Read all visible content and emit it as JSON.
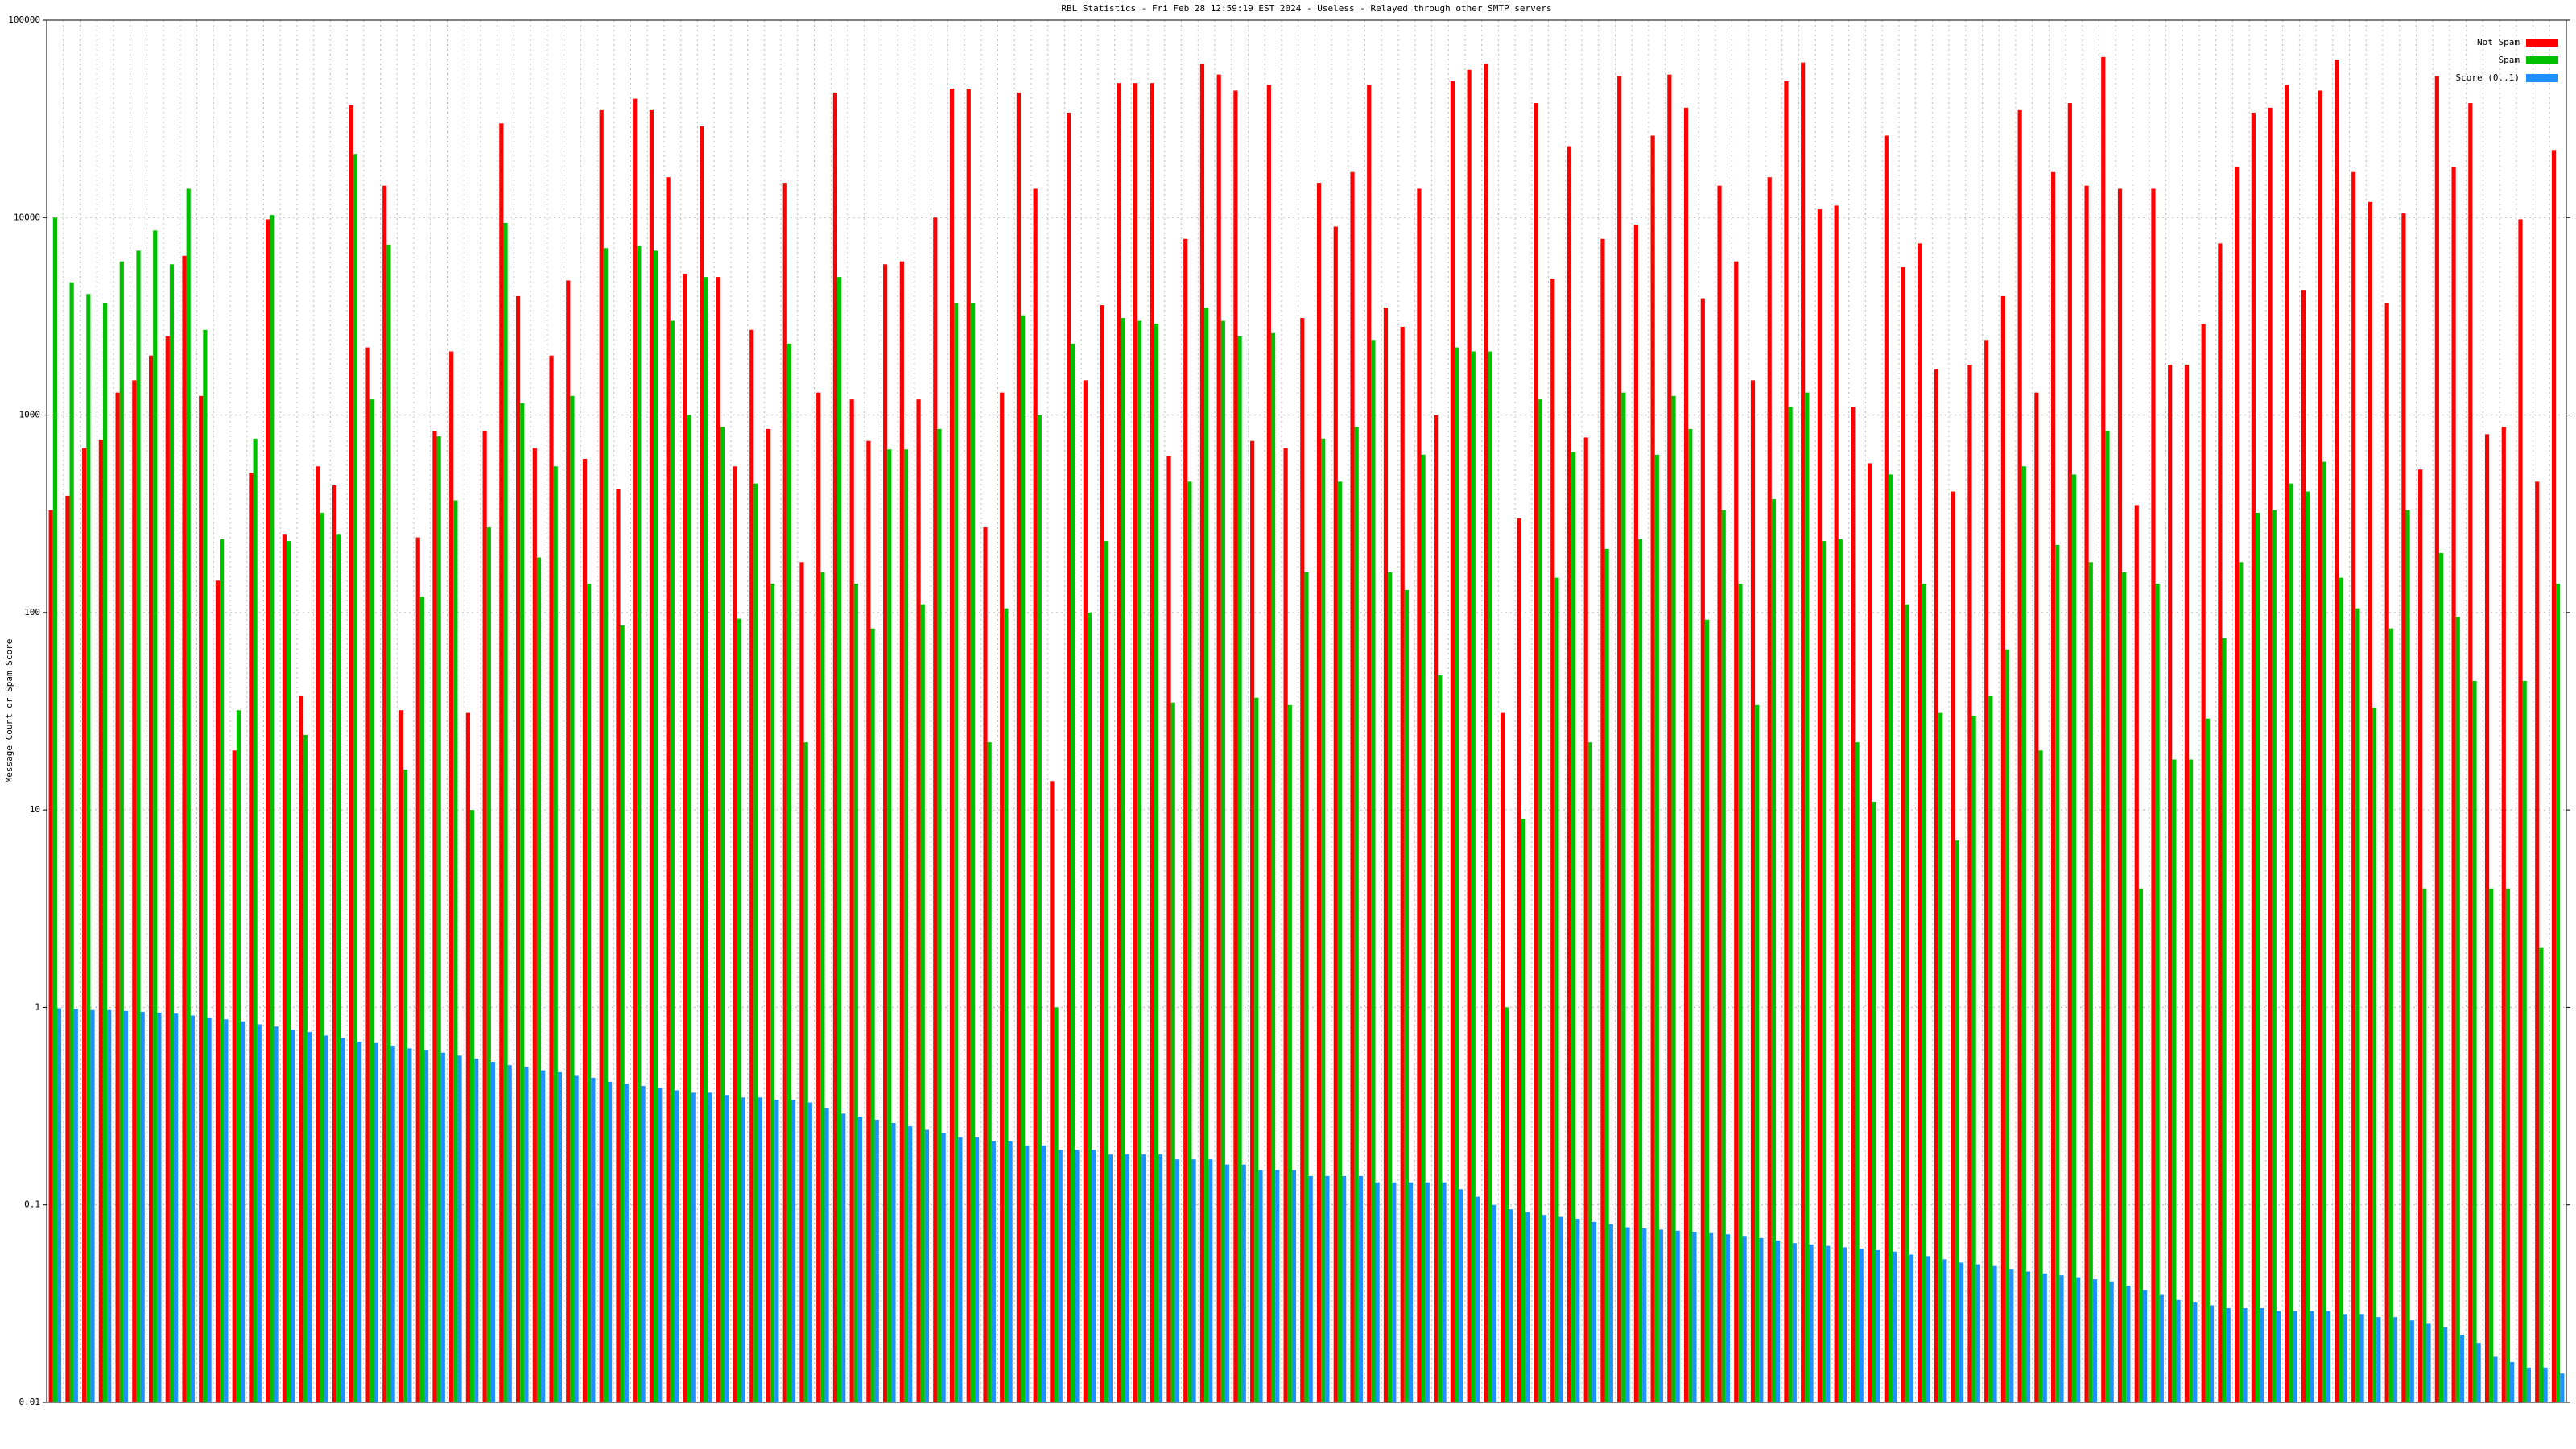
{
  "chart_data": {
    "type": "bar",
    "title": "RBL Statistics - Fri Feb 28 12:59:19 EST 2024 - Useless - Relayed through other SMTP servers",
    "ylabel": "Message Count or Spam Score",
    "log_scale": true,
    "grid": true,
    "legend": "top-right",
    "ylim": [
      0.01,
      100000
    ],
    "yticks": [
      0.01,
      0.1,
      1,
      10,
      100,
      1000,
      10000,
      100000
    ],
    "series": [
      {
        "name": "Not Spam",
        "color": "#ff0000",
        "values": [
          330,
          390,
          680,
          750,
          1300,
          1500,
          2000,
          2500,
          6400,
          1250,
          145,
          20,
          510,
          9800,
          250,
          38,
          550,
          440,
          37000,
          2200,
          14500,
          32,
          240,
          830,
          2100,
          31,
          830,
          30000,
          4000,
          680,
          2000,
          4800,
          600,
          35000,
          420,
          40000,
          35000,
          16000,
          5200,
          29000,
          5000,
          550,
          2700,
          850,
          15000,
          180,
          1300,
          43000,
          1200,
          740,
          5800,
          6000,
          1200,
          10000,
          45000,
          45000,
          270,
          1300,
          43000,
          14000,
          14,
          34000,
          1500,
          3600,
          48000,
          48000,
          48000,
          620,
          7800,
          60000,
          53000,
          44000,
          740,
          47000,
          680,
          3100,
          15000,
          9000,
          17000,
          47000,
          3500,
          2800,
          14000,
          1000,
          49000,
          56000,
          60000,
          31,
          300,
          38000,
          4900,
          23000,
          770,
          7800,
          52000,
          9200,
          26000,
          53000,
          36000,
          3900,
          14500,
          6000,
          1500,
          16000,
          49000,
          61000,
          11000,
          11500,
          1100,
          570,
          26000,
          5600,
          7400,
          1700,
          410,
          1800,
          2400,
          4000,
          35000,
          1300,
          17000,
          38000,
          14500,
          65000,
          14000,
          350,
          14000,
          1800,
          1800,
          2900,
          7400,
          18000,
          34000,
          36000,
          47000,
          4300,
          44000,
          63000,
          17000,
          12000,
          3700,
          10500,
          530,
          52000,
          18000,
          38000,
          800,
          870,
          9800,
          460,
          22000
        ]
      },
      {
        "name": "Spam",
        "color": "#00c000",
        "values": [
          10000,
          4700,
          4100,
          3700,
          6000,
          6800,
          8600,
          5800,
          14000,
          2700,
          235,
          32,
          760,
          10300,
          230,
          24,
          320,
          250,
          21000,
          1200,
          7300,
          16,
          120,
          780,
          370,
          10,
          270,
          9400,
          1150,
          190,
          550,
          1250,
          140,
          7000,
          86,
          7200,
          6800,
          3000,
          1000,
          5000,
          870,
          93,
          450,
          140,
          2300,
          22,
          160,
          5000,
          140,
          83,
          670,
          670,
          110,
          850,
          3700,
          3700,
          22,
          105,
          3200,
          1000,
          1,
          2300,
          100,
          230,
          3100,
          3000,
          2900,
          35,
          460,
          3500,
          3000,
          2500,
          37,
          2600,
          34,
          160,
          760,
          460,
          870,
          2400,
          160,
          130,
          630,
          48,
          2200,
          2100,
          2100,
          1,
          9,
          1200,
          150,
          650,
          22,
          210,
          1300,
          235,
          630,
          1250,
          850,
          92,
          330,
          140,
          34,
          375,
          1100,
          1300,
          230,
          235,
          22,
          11,
          500,
          110,
          140,
          31,
          7,
          30,
          38,
          65,
          550,
          20,
          220,
          500,
          180,
          830,
          160,
          4,
          140,
          18,
          18,
          29,
          74,
          180,
          320,
          330,
          450,
          410,
          580,
          150,
          105,
          33,
          83,
          330,
          4,
          200,
          95,
          45,
          4,
          4,
          45,
          2,
          140
        ]
      },
      {
        "name": "Score (0..1)",
        "color": "#1e90ff",
        "values": [
          0.99,
          0.98,
          0.97,
          0.97,
          0.96,
          0.95,
          0.94,
          0.93,
          0.91,
          0.89,
          0.87,
          0.85,
          0.82,
          0.8,
          0.77,
          0.75,
          0.72,
          0.7,
          0.67,
          0.66,
          0.64,
          0.62,
          0.61,
          0.59,
          0.57,
          0.55,
          0.53,
          0.51,
          0.5,
          0.48,
          0.47,
          0.45,
          0.44,
          0.42,
          0.41,
          0.4,
          0.39,
          0.38,
          0.37,
          0.37,
          0.36,
          0.35,
          0.35,
          0.34,
          0.34,
          0.33,
          0.31,
          0.29,
          0.28,
          0.27,
          0.26,
          0.25,
          0.24,
          0.23,
          0.22,
          0.22,
          0.21,
          0.21,
          0.2,
          0.2,
          0.19,
          0.19,
          0.19,
          0.18,
          0.18,
          0.18,
          0.18,
          0.17,
          0.17,
          0.17,
          0.16,
          0.16,
          0.15,
          0.15,
          0.15,
          0.14,
          0.14,
          0.14,
          0.14,
          0.13,
          0.13,
          0.13,
          0.13,
          0.13,
          0.12,
          0.11,
          0.1,
          0.095,
          0.092,
          0.089,
          0.087,
          0.085,
          0.082,
          0.08,
          0.077,
          0.076,
          0.075,
          0.074,
          0.073,
          0.072,
          0.071,
          0.069,
          0.068,
          0.066,
          0.064,
          0.063,
          0.062,
          0.061,
          0.06,
          0.059,
          0.058,
          0.056,
          0.055,
          0.053,
          0.051,
          0.05,
          0.049,
          0.047,
          0.046,
          0.045,
          0.044,
          0.043,
          0.042,
          0.041,
          0.039,
          0.037,
          0.035,
          0.033,
          0.032,
          0.031,
          0.03,
          0.03,
          0.03,
          0.029,
          0.029,
          0.029,
          0.029,
          0.028,
          0.028,
          0.027,
          0.027,
          0.026,
          0.025,
          0.024,
          0.022,
          0.02,
          0.017,
          0.016,
          0.015,
          0.015,
          0.014
        ]
      }
    ]
  }
}
